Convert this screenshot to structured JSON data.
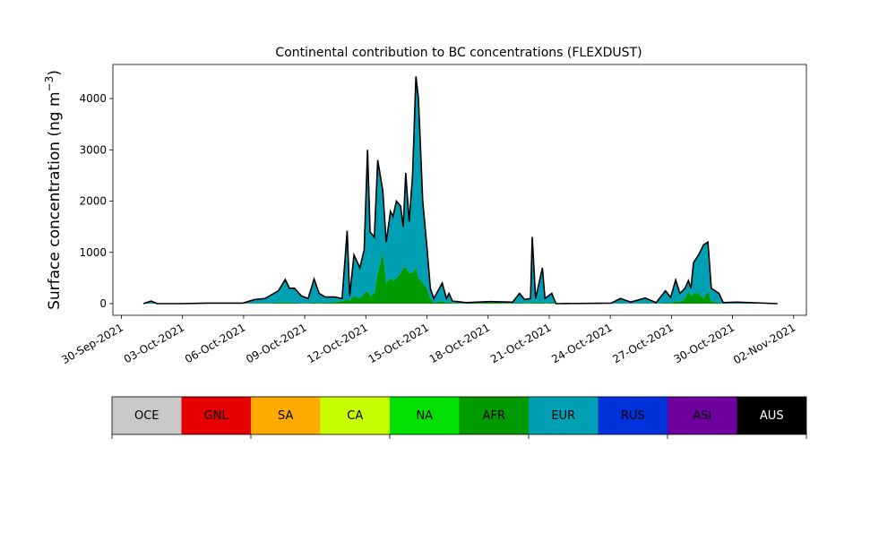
{
  "chart_data": {
    "type": "stacked-area",
    "title": "Continental contribution to BC concentrations (FLEXDUST)",
    "ylabel": {
      "text": "Surface concentration (ng m",
      "superscript": "−3",
      "suffix": ")"
    },
    "x": [
      "2021-10-01 02:00",
      "2021-10-01 11:00",
      "2021-10-01 18:00",
      "2021-10-02 21:00",
      "2021-10-04 05:00",
      "2021-10-05 23:00",
      "2021-10-06 13:00",
      "2021-10-07 01:00",
      "2021-10-07 17:00",
      "2021-10-08 01:00",
      "2021-10-08 06:00",
      "2021-10-08 12:00",
      "2021-10-08 20:00",
      "2021-10-09 04:00",
      "2021-10-09 11:00",
      "2021-10-09 17:00",
      "2021-10-10 00:00",
      "2021-10-10 11:00",
      "2021-10-10 20:00",
      "2021-10-11 02:00",
      "2021-10-11 05:00",
      "2021-10-11 10:00",
      "2021-10-11 17:00",
      "2021-10-11 22:00",
      "2021-10-12 02:00",
      "2021-10-12 05:00",
      "2021-10-12 10:00",
      "2021-10-12 14:00",
      "2021-10-12 20:00",
      "2021-10-13 00:00",
      "2021-10-13 05:00",
      "2021-10-13 08:00",
      "2021-10-13 12:00",
      "2021-10-13 17:00",
      "2021-10-13 20:00",
      "2021-10-13 23:00",
      "2021-10-14 03:00",
      "2021-10-14 07:00",
      "2021-10-14 11:00",
      "2021-10-14 14:00",
      "2021-10-14 19:00",
      "2021-10-15 00:00",
      "2021-10-15 04:00",
      "2021-10-15 08:00",
      "2021-10-15 18:00",
      "2021-10-15 23:00",
      "2021-10-16 02:00",
      "2021-10-16 06:00",
      "2021-10-16 23:00",
      "2021-10-18 02:00",
      "2021-10-19 05:00",
      "2021-10-19 13:00",
      "2021-10-19 19:00",
      "2021-10-20 02:00",
      "2021-10-20 04:00",
      "2021-10-20 08:00",
      "2021-10-20 16:00",
      "2021-10-20 19:00",
      "2021-10-21 03:00",
      "2021-10-21 08:00",
      "2021-10-24 01:00",
      "2021-10-24 12:00",
      "2021-10-25 00:00",
      "2021-10-25 17:00",
      "2021-10-26 06:00",
      "2021-10-26 17:00",
      "2021-10-26 23:00",
      "2021-10-27 05:00",
      "2021-10-27 10:00",
      "2021-10-27 16:00",
      "2021-10-27 20:00",
      "2021-10-27 23:00",
      "2021-10-28 02:00",
      "2021-10-28 08:00",
      "2021-10-28 14:00",
      "2021-10-28 19:00",
      "2021-10-28 23:00",
      "2021-10-29 08:00",
      "2021-10-29 13:00",
      "2021-10-30 05:00",
      "2021-11-01 05:00"
    ],
    "series": [
      {
        "name": "AFR",
        "color": "#009a00",
        "values": [
          0,
          0,
          0,
          0,
          0,
          0,
          10,
          10,
          20,
          30,
          20,
          20,
          10,
          10,
          20,
          10,
          20,
          30,
          50,
          80,
          60,
          150,
          100,
          200,
          250,
          150,
          200,
          600,
          1000,
          400,
          500,
          450,
          500,
          600,
          700,
          700,
          600,
          600,
          700,
          500,
          400,
          300,
          100,
          20,
          50,
          20,
          30,
          10,
          10,
          20,
          10,
          20,
          10,
          10,
          30,
          10,
          30,
          10,
          20,
          0,
          0,
          10,
          0,
          10,
          0,
          20,
          10,
          50,
          30,
          100,
          250,
          150,
          200,
          200,
          100,
          250,
          50,
          20,
          0,
          0,
          0
        ]
      },
      {
        "name": "EUR",
        "color": "#00a0b4",
        "values": [
          0,
          50,
          0,
          0,
          10,
          10,
          70,
          90,
          230,
          440,
          280,
          280,
          140,
          90,
          460,
          190,
          110,
          100,
          50,
          1340,
          90,
          800,
          600,
          850,
          2750,
          1250,
          1100,
          2200,
          1200,
          800,
          1300,
          1250,
          1500,
          1300,
          800,
          1850,
          1000,
          1900,
          3730,
          3500,
          1600,
          800,
          200,
          80,
          350,
          80,
          170,
          40,
          10,
          20,
          20,
          180,
          70,
          90,
          1270,
          90,
          670,
          90,
          180,
          0,
          10,
          90,
          30,
          100,
          20,
          230,
          110,
          410,
          170,
          200,
          200,
          150,
          600,
          750,
          1050,
          950,
          250,
          180,
          20,
          30,
          0
        ]
      }
    ],
    "outline_color": "#000000",
    "xlim": [
      "2021-09-29 14:00",
      "2021-11-02 15:00"
    ],
    "xticks": [
      {
        "value": "2021-09-30",
        "label": "30-Sep-2021"
      },
      {
        "value": "2021-10-03",
        "label": "03-Oct-2021"
      },
      {
        "value": "2021-10-06",
        "label": "06-Oct-2021"
      },
      {
        "value": "2021-10-09",
        "label": "09-Oct-2021"
      },
      {
        "value": "2021-10-12",
        "label": "12-Oct-2021"
      },
      {
        "value": "2021-10-15",
        "label": "15-Oct-2021"
      },
      {
        "value": "2021-10-18",
        "label": "18-Oct-2021"
      },
      {
        "value": "2021-10-21",
        "label": "21-Oct-2021"
      },
      {
        "value": "2021-10-24",
        "label": "24-Oct-2021"
      },
      {
        "value": "2021-10-27",
        "label": "27-Oct-2021"
      },
      {
        "value": "2021-10-30",
        "label": "30-Oct-2021"
      },
      {
        "value": "2021-11-02",
        "label": "02-Nov-2021"
      }
    ],
    "ylim": [
      -227,
      4664
    ],
    "yticks": [
      0,
      1000,
      2000,
      3000,
      4000
    ],
    "colorbar": [
      {
        "name": "OCE",
        "color": "#c8c8c8"
      },
      {
        "name": "GNL",
        "color": "#e60000"
      },
      {
        "name": "SA",
        "color": "#ffaa00"
      },
      {
        "name": "CA",
        "color": "#c8ff00"
      },
      {
        "name": "NA",
        "color": "#00e100"
      },
      {
        "name": "AFR",
        "color": "#009a00"
      },
      {
        "name": "EUR",
        "color": "#00a0b4"
      },
      {
        "name": "RUS",
        "color": "#0032dc"
      },
      {
        "name": "ASI",
        "color": "#6e00a0"
      },
      {
        "name": "AUS",
        "color": "#000000"
      }
    ]
  }
}
